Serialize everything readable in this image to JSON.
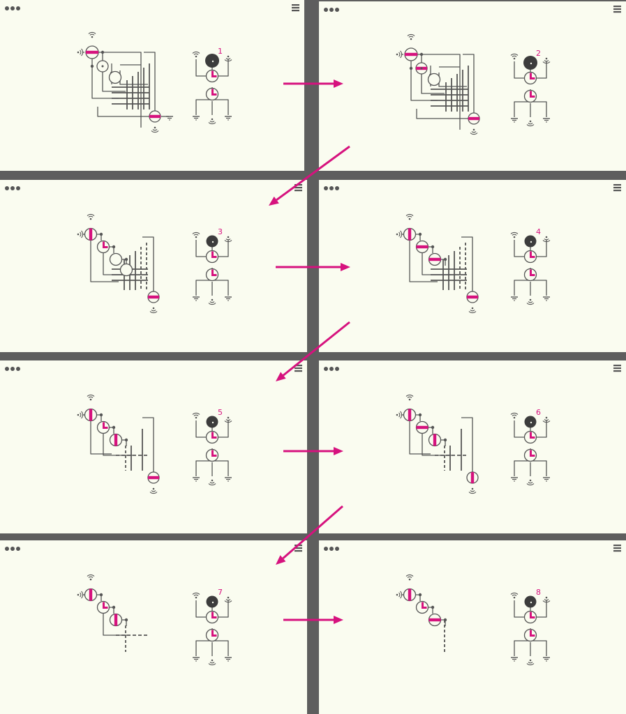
{
  "colors": {
    "background": "#5e5e5e",
    "panel": "#fafcf0",
    "ink": "#555555",
    "accent": "#d6127e",
    "dark_node": "#3c3c3c"
  },
  "icons": {
    "menu": "hamburger-menu-icon",
    "more": "more-dots-icon",
    "antenna": "antenna-icon",
    "ground": "ground-icon",
    "arrow": "arrow-icon"
  },
  "panels": [
    {
      "label": "1"
    },
    {
      "label": "2"
    },
    {
      "label": "3"
    },
    {
      "label": "4"
    },
    {
      "label": "5"
    },
    {
      "label": "6"
    },
    {
      "label": "7"
    },
    {
      "label": "8"
    }
  ]
}
